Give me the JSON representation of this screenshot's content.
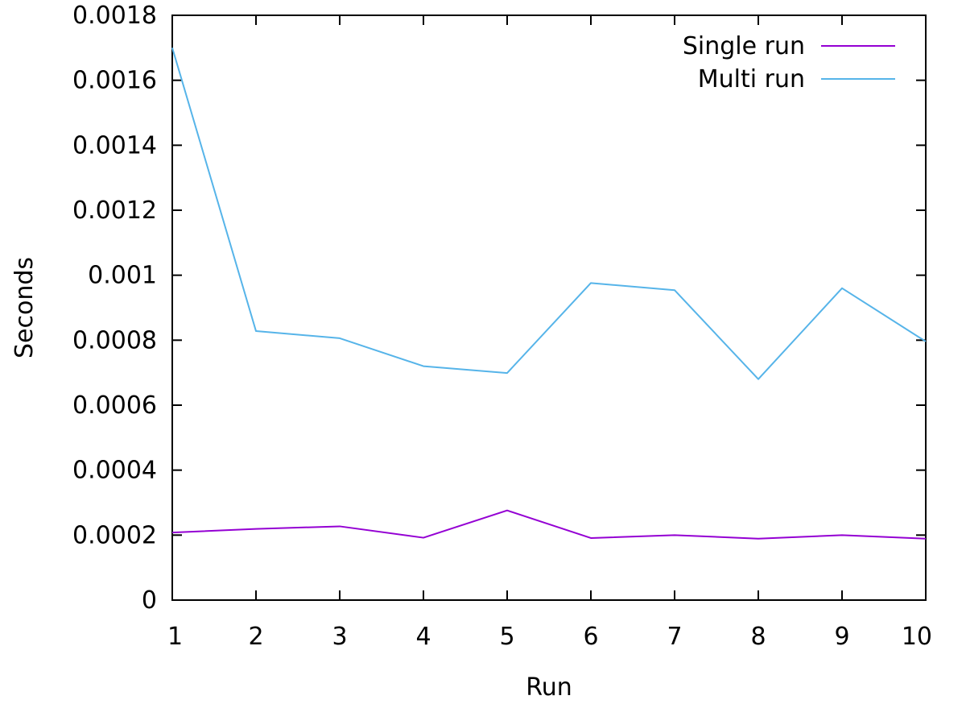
{
  "chart_data": {
    "type": "line",
    "title": "",
    "xlabel": "Run",
    "ylabel": "Seconds",
    "x": [
      1,
      2,
      3,
      4,
      5,
      6,
      7,
      8,
      9,
      10
    ],
    "xlim": [
      1,
      10
    ],
    "ylim": [
      0,
      0.0018
    ],
    "x_ticks": [
      "1",
      "2",
      "3",
      "4",
      "5",
      "6",
      "7",
      "8",
      "9",
      "10"
    ],
    "y_ticks": [
      "0",
      "0.0002",
      "0.0004",
      "0.0006",
      "0.0008",
      "0.001",
      "0.0012",
      "0.0014",
      "0.0016",
      "0.0018"
    ],
    "grid": false,
    "legend_position": "top-right",
    "series": [
      {
        "name": "Single run",
        "color": "#9400d3",
        "values": [
          0.000208,
          0.000219,
          0.000227,
          0.000192,
          0.000276,
          0.000191,
          0.0002,
          0.000189,
          0.0002,
          0.000189
        ]
      },
      {
        "name": "Multi run",
        "color": "#56b4e9",
        "values": [
          0.0017,
          0.000828,
          0.000806,
          0.00072,
          0.000699,
          0.000976,
          0.000954,
          0.00068,
          0.00096,
          0.000796
        ]
      }
    ]
  }
}
